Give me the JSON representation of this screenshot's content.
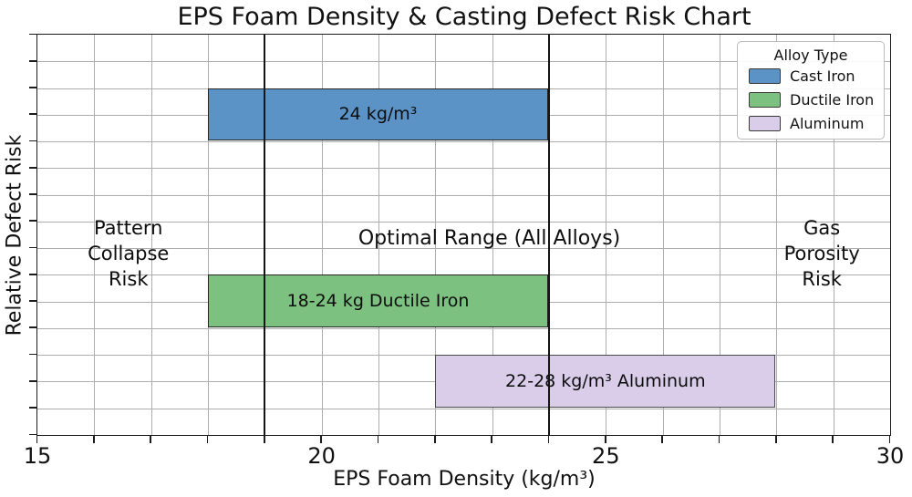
{
  "chart_data": {
    "type": "bar",
    "orientation": "horizontal-range",
    "title": "EPS Foam Density & Casting Defect Risk Chart",
    "xlabel": "EPS Foam Density (kg/m³)",
    "ylabel": "Relative Defect Risk",
    "xlim": [
      15,
      30
    ],
    "ylim": [
      0,
      15
    ],
    "xticks": [
      15,
      20,
      25,
      30
    ],
    "grid": true,
    "grid_step_x": 1,
    "grid_step_y": 1,
    "grid_color": "#adadad",
    "bars": [
      {
        "name": "Cast Iron",
        "label": "24 kg/m³",
        "x_start": 18,
        "x_end": 24,
        "y_start": 11,
        "y_end": 13,
        "color": "#5b93c6",
        "edge": "#262626"
      },
      {
        "name": "Ductile Iron",
        "label": "18-24 kg Ductile Iron",
        "x_start": 18,
        "x_end": 24,
        "y_start": 4,
        "y_end": 6,
        "color": "#7cc17f",
        "edge": "#262626"
      },
      {
        "name": "Aluminum",
        "label": "22-28 kg/m³ Aluminum",
        "x_start": 22,
        "x_end": 28,
        "y_start": 1,
        "y_end": 3,
        "color": "#d9cdea",
        "edge": "#4a4a4a"
      }
    ],
    "reference_lines": [
      {
        "x": 19,
        "color": "#151515"
      },
      {
        "x": 24,
        "color": "#151515"
      }
    ],
    "annotations": [
      {
        "id": "pattern-collapse",
        "text": "Pattern\nCollapse\nRisk",
        "x": 16.6,
        "y": 6.8
      },
      {
        "id": "optimal-range",
        "text": "Optimal Range (All Alloys)",
        "x": 22.95,
        "y": 7.35
      },
      {
        "id": "gas-porosity",
        "text": "Gas Porosity\nRisk",
        "x": 28.8,
        "y": 6.8
      }
    ],
    "legend": {
      "title": "Alloy Type",
      "position": "upper right",
      "entries": [
        {
          "label": "Cast Iron",
          "color": "#5b93c6"
        },
        {
          "label": "Ductile Iron",
          "color": "#7cc17f"
        },
        {
          "label": "Aluminum",
          "color": "#d9cdea"
        }
      ]
    }
  }
}
